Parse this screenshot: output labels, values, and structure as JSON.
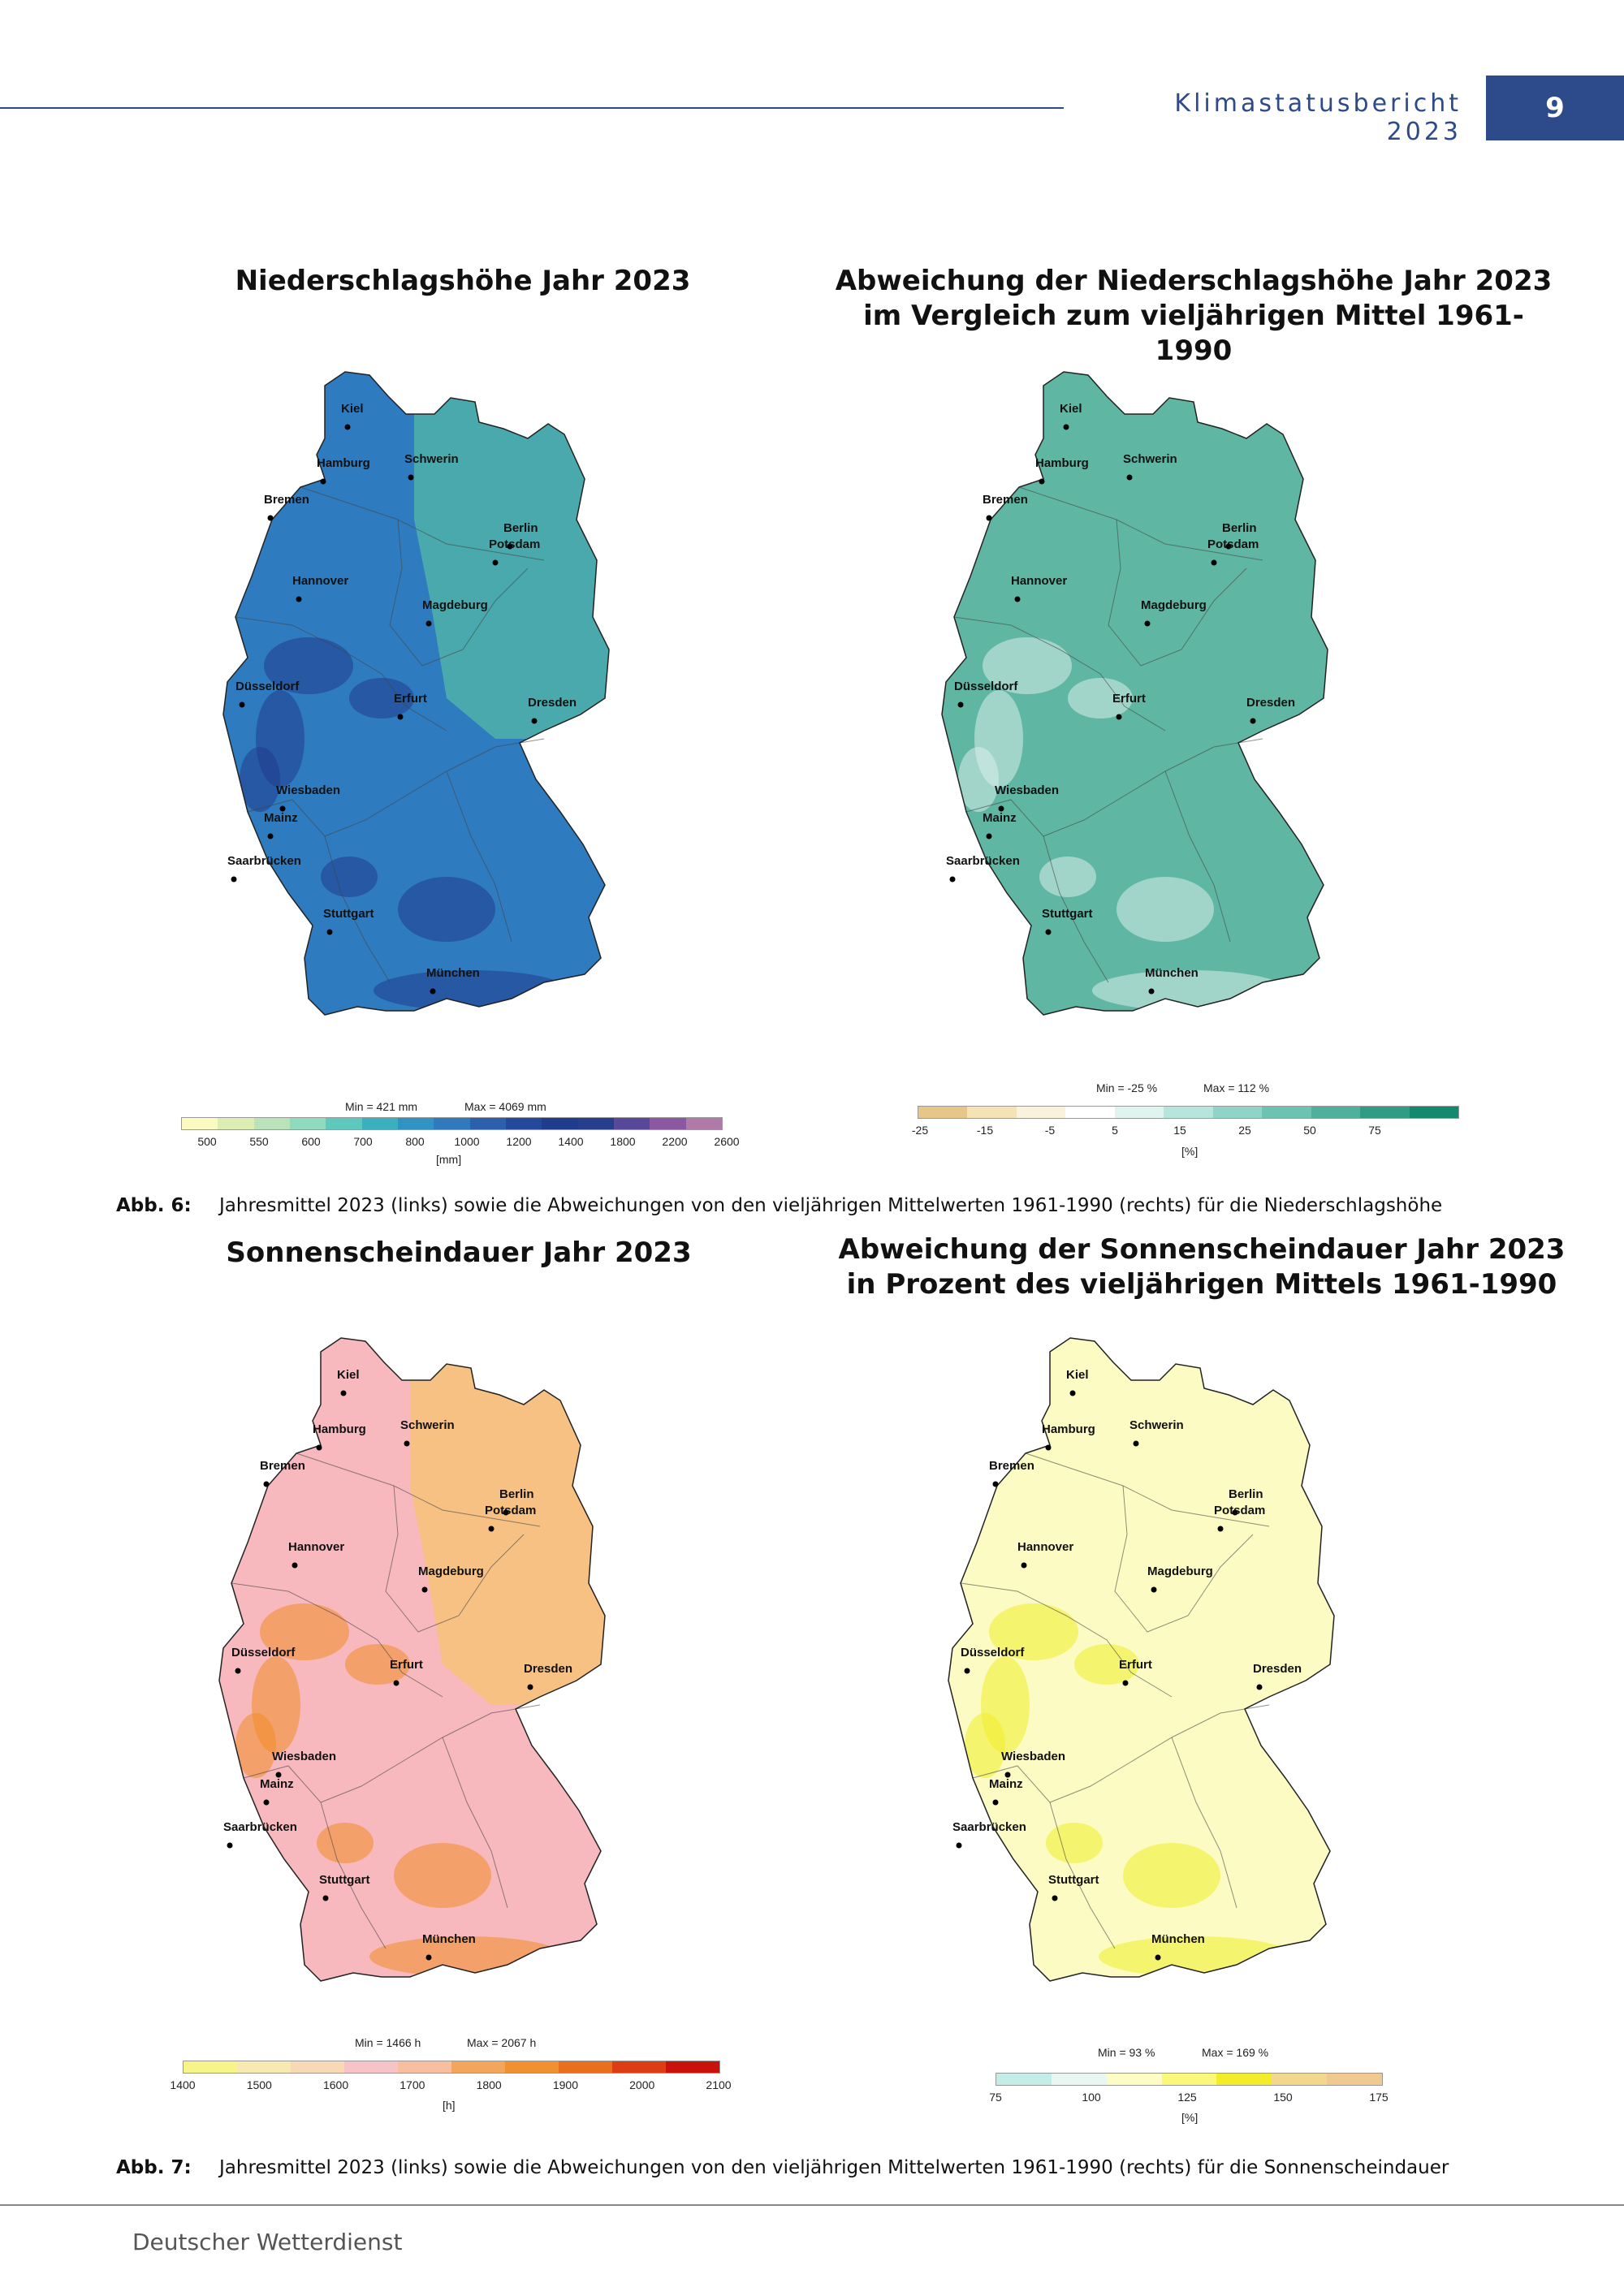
{
  "header": {
    "report_title": "Klimastatusbericht 2023",
    "page_number": "9"
  },
  "cities": [
    "Kiel",
    "Hamburg",
    "Schwerin",
    "Bremen",
    "Berlin",
    "Potsdam",
    "Hannover",
    "Magdeburg",
    "Düsseldorf",
    "Erfurt",
    "Dresden",
    "Wiesbaden",
    "Mainz",
    "Saarbrücken",
    "Stuttgart",
    "München"
  ],
  "fig6": {
    "left": {
      "title": "Niederschlagshöhe Jahr 2023",
      "min_label": "Min = 421 mm",
      "max_label": "Max = 4069 mm",
      "legend_colors": [
        "#fbfac0",
        "#dcedb3",
        "#b8e3b8",
        "#8fdabe",
        "#5ec8bd",
        "#3ab0bf",
        "#2f94c4",
        "#2f79bc",
        "#2c5fac",
        "#24489c",
        "#1f3d8c",
        "#253f8c",
        "#57489a",
        "#8a57a0",
        "#b07aa8"
      ],
      "legend_ticks": [
        "500",
        "550",
        "600",
        "700",
        "800",
        "1000",
        "1200",
        "1400",
        "1800",
        "2200",
        "2600"
      ],
      "unit": "[mm]",
      "land_color": "#2f7bbf",
      "accent_color": "#1f3d8c",
      "east_color": "#4fb1a8"
    },
    "right": {
      "title_line1": "Abweichung der Niederschlagshöhe Jahr 2023",
      "title_line2": "im Vergleich zum vieljährigen Mittel 1961-1990",
      "min_label": "Min = -25 %",
      "max_label": "Max = 112 %",
      "legend_colors": [
        "#e7c68a",
        "#f5e2b5",
        "#fbf2dc",
        "#ffffff",
        "#dff3ef",
        "#b6e5dc",
        "#8fd4c6",
        "#6cc3b2",
        "#4fb09e",
        "#2f9c86",
        "#138a70"
      ],
      "legend_ticks": [
        "-25",
        "-15",
        "-5",
        "5",
        "15",
        "25",
        "50",
        "75"
      ],
      "unit": "[%]",
      "land_color": "#5fb7a3",
      "accent_color": "#d8efe9"
    },
    "caption_label": "Abb. 6:",
    "caption_text": "Jahresmittel 2023 (links) sowie die Abweichungen von den vieljährigen Mittelwerten 1961-1990 (rechts) für die Niederschlagshöhe"
  },
  "fig7": {
    "left": {
      "title": "Sonnenscheindauer Jahr 2023",
      "min_label": "Min = 1466 h",
      "max_label": "Max = 2067 h",
      "legend_colors": [
        "#f7f48a",
        "#f7eab0",
        "#f7d9b5",
        "#f6c4c6",
        "#f7bea0",
        "#f3a65a",
        "#f0902e",
        "#ea6f1c",
        "#dc3d12",
        "#c8120a"
      ],
      "legend_ticks": [
        "1400",
        "1500",
        "1600",
        "1700",
        "1800",
        "1900",
        "2000",
        "2100"
      ],
      "unit": "[h]",
      "land_color": "#f7b9be",
      "accent_color": "#f08c24",
      "east_color": "#f7c27a"
    },
    "right": {
      "title_line1": "Abweichung der Sonnenscheindauer Jahr 2023",
      "title_line2": "in Prozent des vieljährigen Mittels 1961-1990",
      "min_label": "Min = 93 %",
      "max_label": "Max = 169 %",
      "legend_colors": [
        "#c3ede6",
        "#e8f7f2",
        "#fcfcc4",
        "#f9f87a",
        "#f3ec28",
        "#f1d88c",
        "#f0c890"
      ],
      "legend_ticks": [
        "75",
        "100",
        "125",
        "150",
        "175"
      ],
      "unit": "[%]",
      "land_color": "#fbfbc3",
      "accent_color": "#f1ee2a"
    },
    "caption_label": "Abb. 7:",
    "caption_text": "Jahresmittel 2023 (links) sowie die Abweichungen von den vieljährigen Mittelwerten 1961-1990 (rechts) für die Sonnenscheindauer"
  },
  "footer": {
    "text": "Deutscher Wetterdienst"
  }
}
